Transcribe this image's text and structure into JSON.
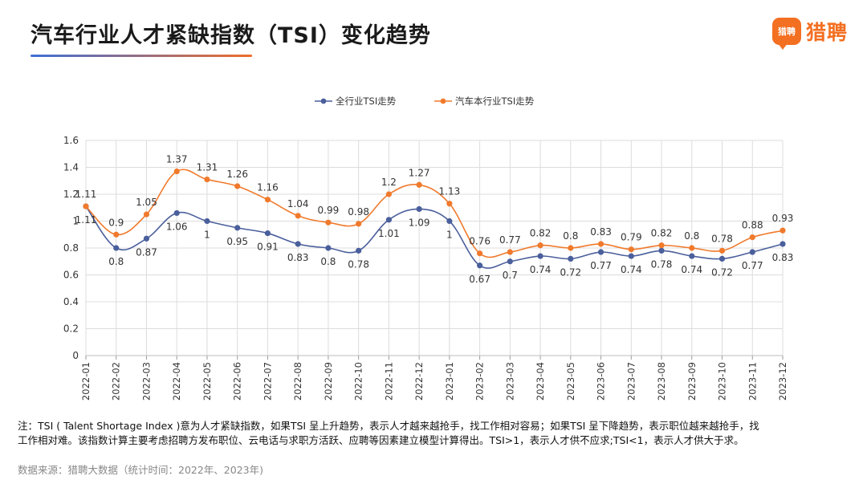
{
  "header": {
    "title": "汽车行业人才紧缺指数（TSI）变化趋势",
    "logo_badge": "猎聘",
    "logo_text": "猎聘"
  },
  "colors": {
    "series_all": "#4a5f9c",
    "series_auto": "#f07a2c",
    "grid": "#dcdcdc",
    "accent": "#f36f21"
  },
  "chart_data": {
    "type": "line",
    "title": "",
    "xlabel": "",
    "ylabel": "",
    "ylim": [
      0,
      1.6
    ],
    "yticks": [
      "0",
      "0.2",
      "0.4",
      "0.6",
      "0.8",
      "1",
      "1.2",
      "1.4",
      "1.6"
    ],
    "legend_position": "top-center",
    "grid": true,
    "categories": [
      "2022-01",
      "2022-02",
      "2022-03",
      "2022-04",
      "2022-05",
      "2022-06",
      "2022-07",
      "2022-08",
      "2022-09",
      "2022-10",
      "2022-11",
      "2022-12",
      "2023-01",
      "2023-02",
      "2023-03",
      "2023-04",
      "2023-05",
      "2023-06",
      "2023-07",
      "2023-08",
      "2023-09",
      "2023-10",
      "2023-11",
      "2023-12"
    ],
    "series": [
      {
        "name": "全行业TSI走势",
        "color": "#4a5f9c",
        "label_position": "below",
        "values": [
          1.11,
          0.8,
          0.87,
          1.06,
          1,
          0.95,
          0.91,
          0.83,
          0.8,
          0.78,
          1.01,
          1.09,
          1,
          0.67,
          0.7,
          0.74,
          0.72,
          0.77,
          0.74,
          0.78,
          0.74,
          0.72,
          0.77,
          0.83
        ],
        "labels": [
          "1.11",
          "0.8",
          "0.87",
          "1.06",
          "1",
          "0.95",
          "0.91",
          "0.83",
          "0.8",
          "0.78",
          "1.01",
          "1.09",
          "1",
          "0.67",
          "0.7",
          "0.74",
          "0.72",
          "0.77",
          "0.74",
          "0.78",
          "0.74",
          "0.72",
          "0.77",
          "0.83"
        ]
      },
      {
        "name": "汽车本行业TSI走势",
        "color": "#f07a2c",
        "label_position": "above",
        "values": [
          1.11,
          0.9,
          1.05,
          1.37,
          1.31,
          1.26,
          1.16,
          1.04,
          0.99,
          0.98,
          1.2,
          1.27,
          1.13,
          0.76,
          0.77,
          0.82,
          0.8,
          0.83,
          0.79,
          0.82,
          0.8,
          0.78,
          0.88,
          0.93
        ],
        "labels": [
          "1.11",
          "0.9",
          "1.05",
          "1.37",
          "1.31",
          "1.26",
          "1.16",
          "1.04",
          "0.99",
          "0.98",
          "1.2",
          "1.27",
          "1.13",
          "0.76",
          "0.77",
          "0.82",
          "0.8",
          "0.83",
          "0.79",
          "0.82",
          "0.8",
          "0.78",
          "0.88",
          "0.93"
        ]
      }
    ]
  },
  "footer": {
    "note_line1": "注：TSI ( Talent Shortage Index )意为人才紧缺指数，如果TSI 呈上升趋势，表示人才越来越抢手，找工作相对容易；如果TSI 呈下降趋势，表示职位越来越抢手，找",
    "note_line2": "工作相对难。该指数计算主要考虑招聘方发布职位、云电话与求职方活跃、应聘等因素建立模型计算得出。TSI>1，表示人才供不应求;TSI<1，表示人才供大于求。",
    "source": "数据来源：猎聘大数据（统计时间：2022年、2023年)"
  }
}
